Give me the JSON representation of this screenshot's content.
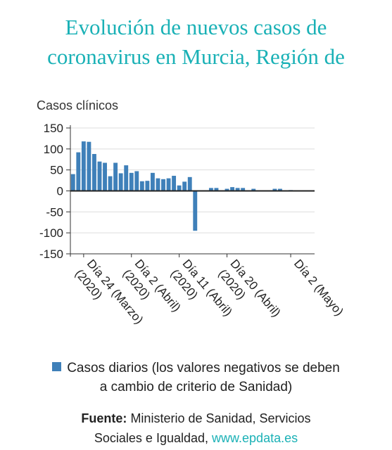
{
  "header": {
    "title_line1": "Evolución de nuevos casos de",
    "title_line2": "coronavirus en Murcia, Región de"
  },
  "chart_data": {
    "type": "bar",
    "ylabel": "Casos clínicos",
    "ylim": [
      -150,
      150
    ],
    "yticks": [
      150,
      100,
      50,
      0,
      -50,
      -100,
      -150
    ],
    "grid": true,
    "x_tick_labels": [
      {
        "label": "Día 24 (Marzo)",
        "year": "(2020)",
        "index": 2
      },
      {
        "label": "Día 2 (Abril)",
        "year": "(2020)",
        "index": 11
      },
      {
        "label": "Día 11 (Abril)",
        "year": "(2020)",
        "index": 20
      },
      {
        "label": "Día 20 (Abril)",
        "year": "(2020)",
        "index": 29
      },
      {
        "label": "Día 2 (Mayo)",
        "year": "",
        "index": 41
      }
    ],
    "series": [
      {
        "name": "Casos diarios (los valores negativos se deben a cambio de criterio de Sanidad)",
        "color": "#3f80b9",
        "values": [
          40,
          92,
          118,
          117,
          88,
          70,
          67,
          35,
          67,
          42,
          61,
          43,
          47,
          23,
          24,
          43,
          30,
          28,
          30,
          36,
          13,
          22,
          33,
          -95,
          0,
          0,
          7,
          7,
          0,
          5,
          9,
          7,
          7,
          0,
          5,
          0,
          0,
          0,
          5,
          5,
          0,
          2,
          0,
          0,
          0,
          0
        ]
      }
    ]
  },
  "legend": {
    "line1": "Casos diarios (los valores negativos se deben",
    "line2": "a cambio de criterio de Sanidad)"
  },
  "source": {
    "label": "Fuente:",
    "text1": "Ministerio de Sanidad, Servicios",
    "text2": "Sociales e Igualdad,",
    "link": "www.epdata.es"
  }
}
